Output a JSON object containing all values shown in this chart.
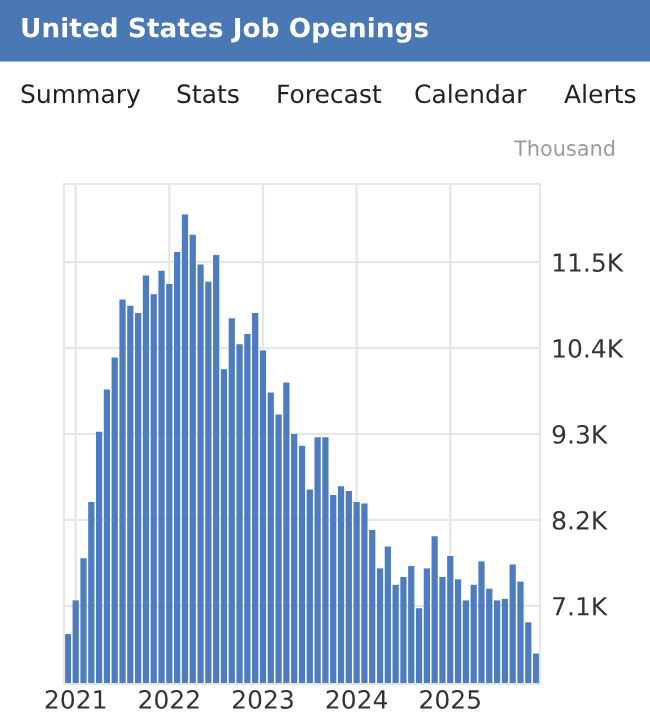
{
  "chart_data": {
    "type": "bar",
    "title": "United States Job Openings",
    "ylabel": "Thousand",
    "annotations": [
      "Summary",
      "Stats",
      "Forecast",
      "Calendar",
      "Alerts"
    ],
    "categories": [
      null,
      "2021",
      null,
      null,
      null,
      null,
      null,
      null,
      null,
      null,
      null,
      null,
      null,
      "2022",
      null,
      null,
      null,
      null,
      null,
      null,
      null,
      null,
      null,
      null,
      null,
      "2023",
      null,
      null,
      null,
      null,
      null,
      null,
      null,
      null,
      null,
      null,
      null,
      "2024",
      null,
      null,
      null,
      null,
      null,
      null,
      null,
      null,
      null,
      null,
      null,
      "2025",
      null,
      null,
      null,
      null,
      null,
      null,
      null,
      null,
      null,
      null,
      null
    ],
    "values": [
      6740,
      7170,
      7710,
      8430,
      9330,
      9870,
      10280,
      11020,
      10940,
      10850,
      11330,
      11090,
      11390,
      11220,
      11630,
      12110,
      11850,
      11470,
      11250,
      11590,
      10130,
      10780,
      10450,
      10580,
      10850,
      10370,
      9830,
      9550,
      9960,
      9300,
      9150,
      8590,
      9260,
      9260,
      8520,
      8630,
      8570,
      8430,
      8410,
      8070,
      7580,
      7860,
      7370,
      7470,
      7610,
      7070,
      7580,
      7990,
      7470,
      7740,
      7440,
      7170,
      7370,
      7670,
      7320,
      7170,
      7190,
      7630,
      7410,
      6890,
      6490
    ],
    "color": "#4d7cbf",
    "ylim": [
      6100,
      12500
    ],
    "yticks": [
      {
        "value": 7100,
        "label": "7.1K"
      },
      {
        "value": 8200,
        "label": "8.2K"
      },
      {
        "value": 9300,
        "label": "9.3K"
      },
      {
        "value": 10400,
        "label": "10.4K"
      },
      {
        "value": 11500,
        "label": "11.5K"
      }
    ],
    "grid": true
  }
}
